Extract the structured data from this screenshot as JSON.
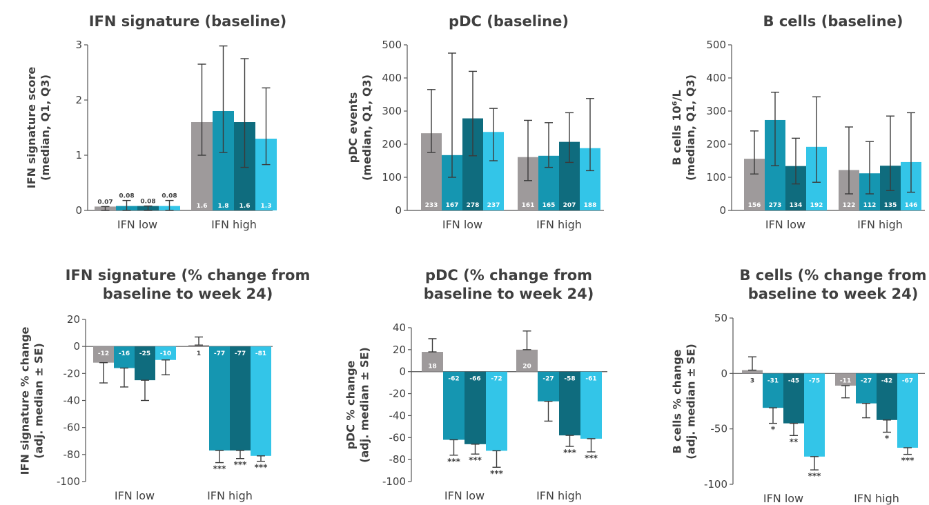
{
  "colors": {
    "gray": "#9e9a9b",
    "teal_mid": "#1596b1",
    "teal_dark": "#0f6c7e",
    "cyan": "#33c5e8",
    "axis": "#555555",
    "err": "#3a3a3a",
    "text": "#3f3f3f"
  },
  "chart_data": [
    {
      "type": "bar",
      "title": "IFN signature (baseline)",
      "ylabel": [
        "IFN signature score",
        "(median, Q1, Q3)"
      ],
      "categories": [
        "IFN low",
        "IFN high"
      ],
      "ylim": [
        0,
        3
      ],
      "yticks": [
        0,
        1,
        2,
        3
      ],
      "label_pos": "above",
      "series": [
        {
          "values": [
            0.07,
            1.6
          ],
          "labels": [
            "0.07",
            "1.6"
          ],
          "err_low": [
            0.0,
            1.0
          ],
          "err_high": [
            0.07,
            2.65
          ],
          "sig": [
            "",
            ""
          ]
        },
        {
          "values": [
            0.08,
            1.8
          ],
          "labels": [
            "0.08",
            "1.8"
          ],
          "err_low": [
            0.0,
            1.05
          ],
          "err_high": [
            0.18,
            2.98
          ],
          "sig": [
            "",
            ""
          ]
        },
        {
          "values": [
            0.08,
            1.6
          ],
          "labels": [
            "0.08",
            "1.6"
          ],
          "err_low": [
            0.0,
            0.78
          ],
          "err_high": [
            0.08,
            2.75
          ],
          "sig": [
            "",
            ""
          ]
        },
        {
          "values": [
            0.08,
            1.3
          ],
          "labels": [
            "0.08",
            "1.3"
          ],
          "err_low": [
            0.0,
            0.83
          ],
          "err_high": [
            0.18,
            2.22
          ],
          "sig": [
            "",
            ""
          ]
        }
      ]
    },
    {
      "type": "bar",
      "title": "pDC (baseline)",
      "ylabel": [
        "pDC events",
        "(median, Q1, Q3)"
      ],
      "categories": [
        "IFN low",
        "IFN high"
      ],
      "ylim": [
        0,
        500
      ],
      "yticks": [
        0,
        100,
        200,
        300,
        400,
        500
      ],
      "label_pos": "base",
      "series": [
        {
          "values": [
            233,
            161
          ],
          "labels": [
            "233",
            "161"
          ],
          "err_low": [
            175,
            90
          ],
          "err_high": [
            365,
            272
          ],
          "sig": [
            "",
            ""
          ]
        },
        {
          "values": [
            167,
            165
          ],
          "labels": [
            "167",
            "165"
          ],
          "err_low": [
            100,
            130
          ],
          "err_high": [
            475,
            265
          ],
          "sig": [
            "",
            ""
          ]
        },
        {
          "values": [
            278,
            207
          ],
          "labels": [
            "278",
            "207"
          ],
          "err_low": [
            165,
            145
          ],
          "err_high": [
            420,
            295
          ],
          "sig": [
            "",
            ""
          ]
        },
        {
          "values": [
            237,
            188
          ],
          "labels": [
            "237",
            "188"
          ],
          "err_low": [
            150,
            120
          ],
          "err_high": [
            308,
            338
          ],
          "sig": [
            "",
            ""
          ]
        }
      ]
    },
    {
      "type": "bar",
      "title": "B cells (baseline)",
      "ylabel": [
        "B cells 10⁶/L",
        "(median, Q1, Q3)"
      ],
      "categories": [
        "IFN low",
        "IFN high"
      ],
      "ylim": [
        0,
        500
      ],
      "yticks": [
        0,
        100,
        200,
        300,
        400,
        500
      ],
      "label_pos": "base",
      "series": [
        {
          "values": [
            156,
            122
          ],
          "labels": [
            "156",
            "122"
          ],
          "err_low": [
            110,
            50
          ],
          "err_high": [
            240,
            252
          ],
          "sig": [
            "",
            ""
          ]
        },
        {
          "values": [
            273,
            112
          ],
          "labels": [
            "273",
            "112"
          ],
          "err_low": [
            135,
            50
          ],
          "err_high": [
            357,
            208
          ],
          "sig": [
            "",
            ""
          ]
        },
        {
          "values": [
            134,
            135
          ],
          "labels": [
            "134",
            "135"
          ],
          "err_low": [
            80,
            60
          ],
          "err_high": [
            218,
            285
          ],
          "sig": [
            "",
            ""
          ]
        },
        {
          "values": [
            192,
            146
          ],
          "labels": [
            "192",
            "146"
          ],
          "err_low": [
            85,
            55
          ],
          "err_high": [
            343,
            295
          ],
          "sig": [
            "",
            ""
          ]
        }
      ]
    },
    {
      "type": "bar",
      "title": "IFN signature (% change from baseline to week 24)",
      "title_lines": [
        "IFN signature (% change from",
        "baseline to week 24)"
      ],
      "ylabel": [
        "IFN signature % change",
        "(adj. median ± SE)"
      ],
      "categories": [
        "IFN low",
        "IFN high"
      ],
      "ylim": [
        -100,
        20
      ],
      "yticks": [
        -100,
        -80,
        -60,
        -40,
        -20,
        0,
        20
      ],
      "label_pos": "top",
      "series": [
        {
          "values": [
            -12,
            1
          ],
          "labels": [
            "-12",
            "1"
          ],
          "err_low": [
            -27,
            1
          ],
          "err_high": [
            -12,
            7
          ],
          "sig": [
            "",
            ""
          ]
        },
        {
          "values": [
            -16,
            -77
          ],
          "labels": [
            "-16",
            "-77"
          ],
          "err_low": [
            -30,
            -86
          ],
          "err_high": [
            -16,
            -77
          ],
          "sig": [
            "",
            "***"
          ]
        },
        {
          "values": [
            -25,
            -77
          ],
          "labels": [
            "-25",
            "-77"
          ],
          "err_low": [
            -40,
            -83
          ],
          "err_high": [
            -25,
            -77
          ],
          "sig": [
            "",
            "***"
          ]
        },
        {
          "values": [
            -10,
            -81
          ],
          "labels": [
            "-10",
            "-81"
          ],
          "err_low": [
            -21,
            -85
          ],
          "err_high": [
            -10,
            -81
          ],
          "sig": [
            "",
            "***"
          ]
        }
      ]
    },
    {
      "type": "bar",
      "title": "pDC (% change from baseline to week 24)",
      "title_lines": [
        "pDC (% change from",
        "baseline to week 24)"
      ],
      "ylabel": [
        "pDC % change",
        "(adj. median ± SE)"
      ],
      "categories": [
        "IFN low",
        "IFN high"
      ],
      "ylim": [
        -100,
        40
      ],
      "yticks": [
        -100,
        -80,
        -60,
        -40,
        -20,
        0,
        20,
        40
      ],
      "label_pos": "top",
      "series": [
        {
          "values": [
            18,
            20
          ],
          "labels": [
            "18",
            "20"
          ],
          "err_low": [
            18,
            20
          ],
          "err_high": [
            30,
            37
          ],
          "sig": [
            "",
            ""
          ]
        },
        {
          "values": [
            -62,
            -27
          ],
          "labels": [
            "-62",
            "-27"
          ],
          "err_low": [
            -76,
            -45
          ],
          "err_high": [
            -62,
            -27
          ],
          "sig": [
            "***",
            ""
          ]
        },
        {
          "values": [
            -66,
            -58
          ],
          "labels": [
            "-66",
            "-58"
          ],
          "err_low": [
            -75,
            -68
          ],
          "err_high": [
            -66,
            -58
          ],
          "sig": [
            "***",
            "***"
          ]
        },
        {
          "values": [
            -72,
            -61
          ],
          "labels": [
            "-72",
            "-61"
          ],
          "err_low": [
            -87,
            -73
          ],
          "err_high": [
            -72,
            -61
          ],
          "sig": [
            "***",
            "***"
          ]
        }
      ]
    },
    {
      "type": "bar",
      "title": "B cells (% change from baseline to week 24)",
      "title_lines": [
        "B cells (% change from",
        "baseline to week 24)"
      ],
      "ylabel": [
        "B cells % change",
        "(adj. median ± SE)"
      ],
      "categories": [
        "IFN low",
        "IFN high"
      ],
      "ylim": [
        -100,
        50
      ],
      "yticks": [
        -100,
        -50,
        0,
        50
      ],
      "label_pos": "top",
      "series": [
        {
          "values": [
            3,
            -11
          ],
          "labels": [
            "3",
            "-11"
          ],
          "err_low": [
            3,
            -22
          ],
          "err_high": [
            15,
            -11
          ],
          "sig": [
            "",
            ""
          ]
        },
        {
          "values": [
            -31,
            -27
          ],
          "labels": [
            "-31",
            "-27"
          ],
          "err_low": [
            -45,
            -40
          ],
          "err_high": [
            -31,
            -27
          ],
          "sig": [
            "*",
            ""
          ]
        },
        {
          "values": [
            -45,
            -42
          ],
          "labels": [
            "-45",
            "-42"
          ],
          "err_low": [
            -56,
            -53
          ],
          "err_high": [
            -45,
            -42
          ],
          "sig": [
            "**",
            "*"
          ]
        },
        {
          "values": [
            -75,
            -67
          ],
          "labels": [
            "-75",
            "-67"
          ],
          "err_low": [
            -87,
            -73
          ],
          "err_high": [
            -75,
            -67
          ],
          "sig": [
            "***",
            "***"
          ]
        }
      ]
    }
  ]
}
